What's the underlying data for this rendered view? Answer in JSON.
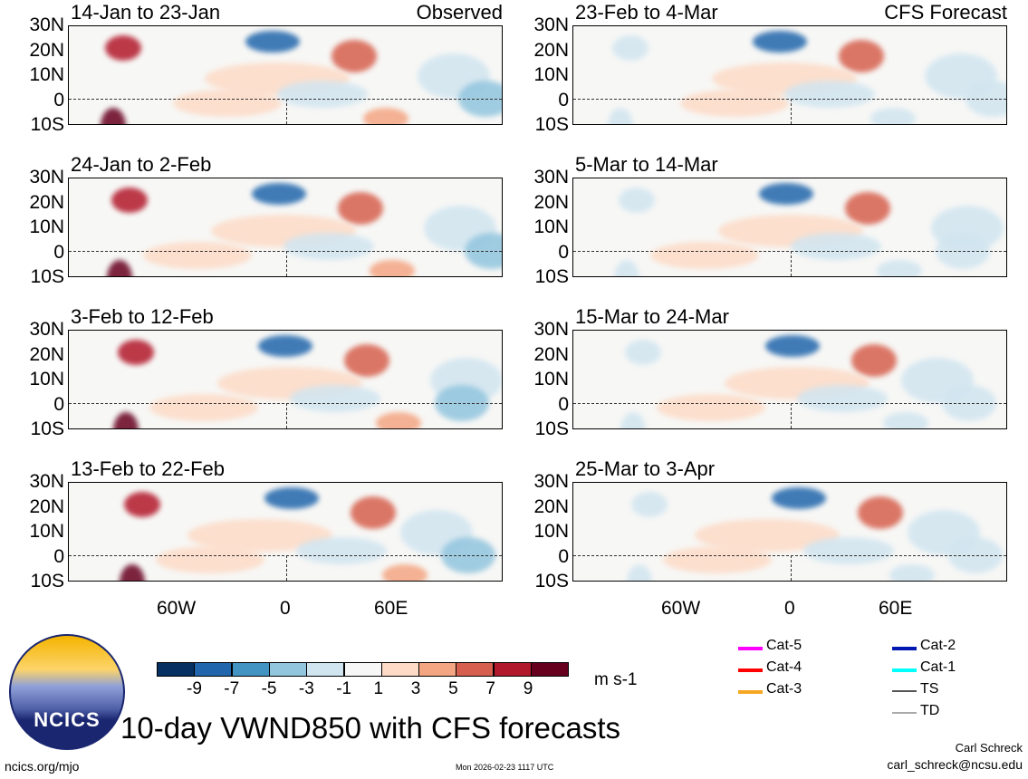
{
  "panels": {
    "left": [
      {
        "title": "14-Jan to 23-Jan",
        "tag": "Observed"
      },
      {
        "title": "24-Jan to 2-Feb"
      },
      {
        "title": "3-Feb to 12-Feb"
      },
      {
        "title": "13-Feb to 22-Feb"
      }
    ],
    "right": [
      {
        "title": "23-Feb to 4-Mar",
        "tag": "CFS Forecast"
      },
      {
        "title": "5-Mar to 14-Mar"
      },
      {
        "title": "15-Mar to 24-Mar"
      },
      {
        "title": "25-Mar to 3-Apr"
      }
    ]
  },
  "lat_labels": [
    "30N",
    "20N",
    "10N",
    "0",
    "10S"
  ],
  "lon_labels": [
    "60W",
    "0",
    "60E"
  ],
  "colorbar": {
    "colors": [
      "#053061",
      "#2166ac",
      "#4393c3",
      "#92c5de",
      "#d1e5f0",
      "#f7f7f7",
      "#fddbc7",
      "#f4a582",
      "#d6604d",
      "#b2182b",
      "#67001f"
    ],
    "labels": [
      "-9",
      "-7",
      "-5",
      "-3",
      "-1",
      "1",
      "3",
      "5",
      "7",
      "9"
    ],
    "units": "m s-1"
  },
  "legend": [
    {
      "label": "Cat-5",
      "color": "#ff00ff"
    },
    {
      "label": "Cat-4",
      "color": "#ff0000"
    },
    {
      "label": "Cat-3",
      "color": "#f5a623"
    },
    {
      "label": "Cat-2",
      "color": "#0018b0"
    },
    {
      "label": "Cat-1",
      "color": "#00ffff"
    },
    {
      "label": "TS",
      "color": "#555555"
    },
    {
      "label": "TD",
      "color": "#aaaaaa"
    }
  ],
  "logo_text": "NCICS",
  "main_title": "10-day VWND850 with CFS forecasts",
  "footer": {
    "url": "ncics.org/mjo",
    "timestamp": "Mon 2026-02-23 1117 UTC",
    "author": "Carl Schreck",
    "email": "carl_schreck@ncsu.edu"
  }
}
